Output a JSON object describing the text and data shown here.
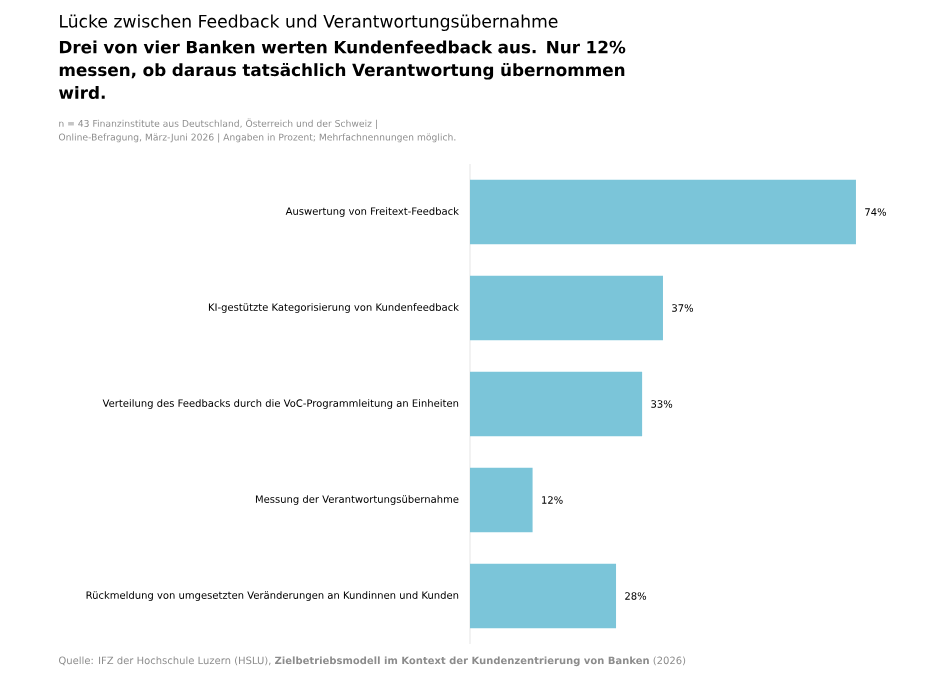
{
  "chart_data": {
    "type": "bar",
    "orientation": "horizontal",
    "title": "Lücke zwischen Feedback und Verantwortungsübernahme",
    "subtitle": "Drei von vier Banken werten Kundenfeedback aus. Nur 12% messen, ob daraus tatsächlich Verantwortung übernommen wird.",
    "annotations": [
      "n = 43 Finanzinstitute aus Deutschland, Österreich und der Schweiz |",
      "Online-Befragung, März-Juni 2026 | Angaben in Prozent; Mehrfachnennungen möglich.",
      "Quelle: IFZ der Hochschule Luzern (HSLU), **Zielbetriebsmodell im Kontext der Kundenzentrierung von Banken** (2026)"
    ],
    "categories": [
      "Auswertung von Freitext-Feedback",
      "KI-gestützte Kategorisierung von Kundenfeedback",
      "Verteilung des Feedbacks durch die VoC-Programmleitung an Einheiten",
      "Messung der Verantwortungsübernahme",
      "Rückmeldung von umgesetzten Veränderungen an Kundinnen und Kunden"
    ],
    "values": [
      74,
      37,
      33,
      12,
      28
    ],
    "value_labels": [
      "74%",
      "37%",
      "33%",
      "12%",
      "28%"
    ],
    "color": "#7bc5d9"
  }
}
